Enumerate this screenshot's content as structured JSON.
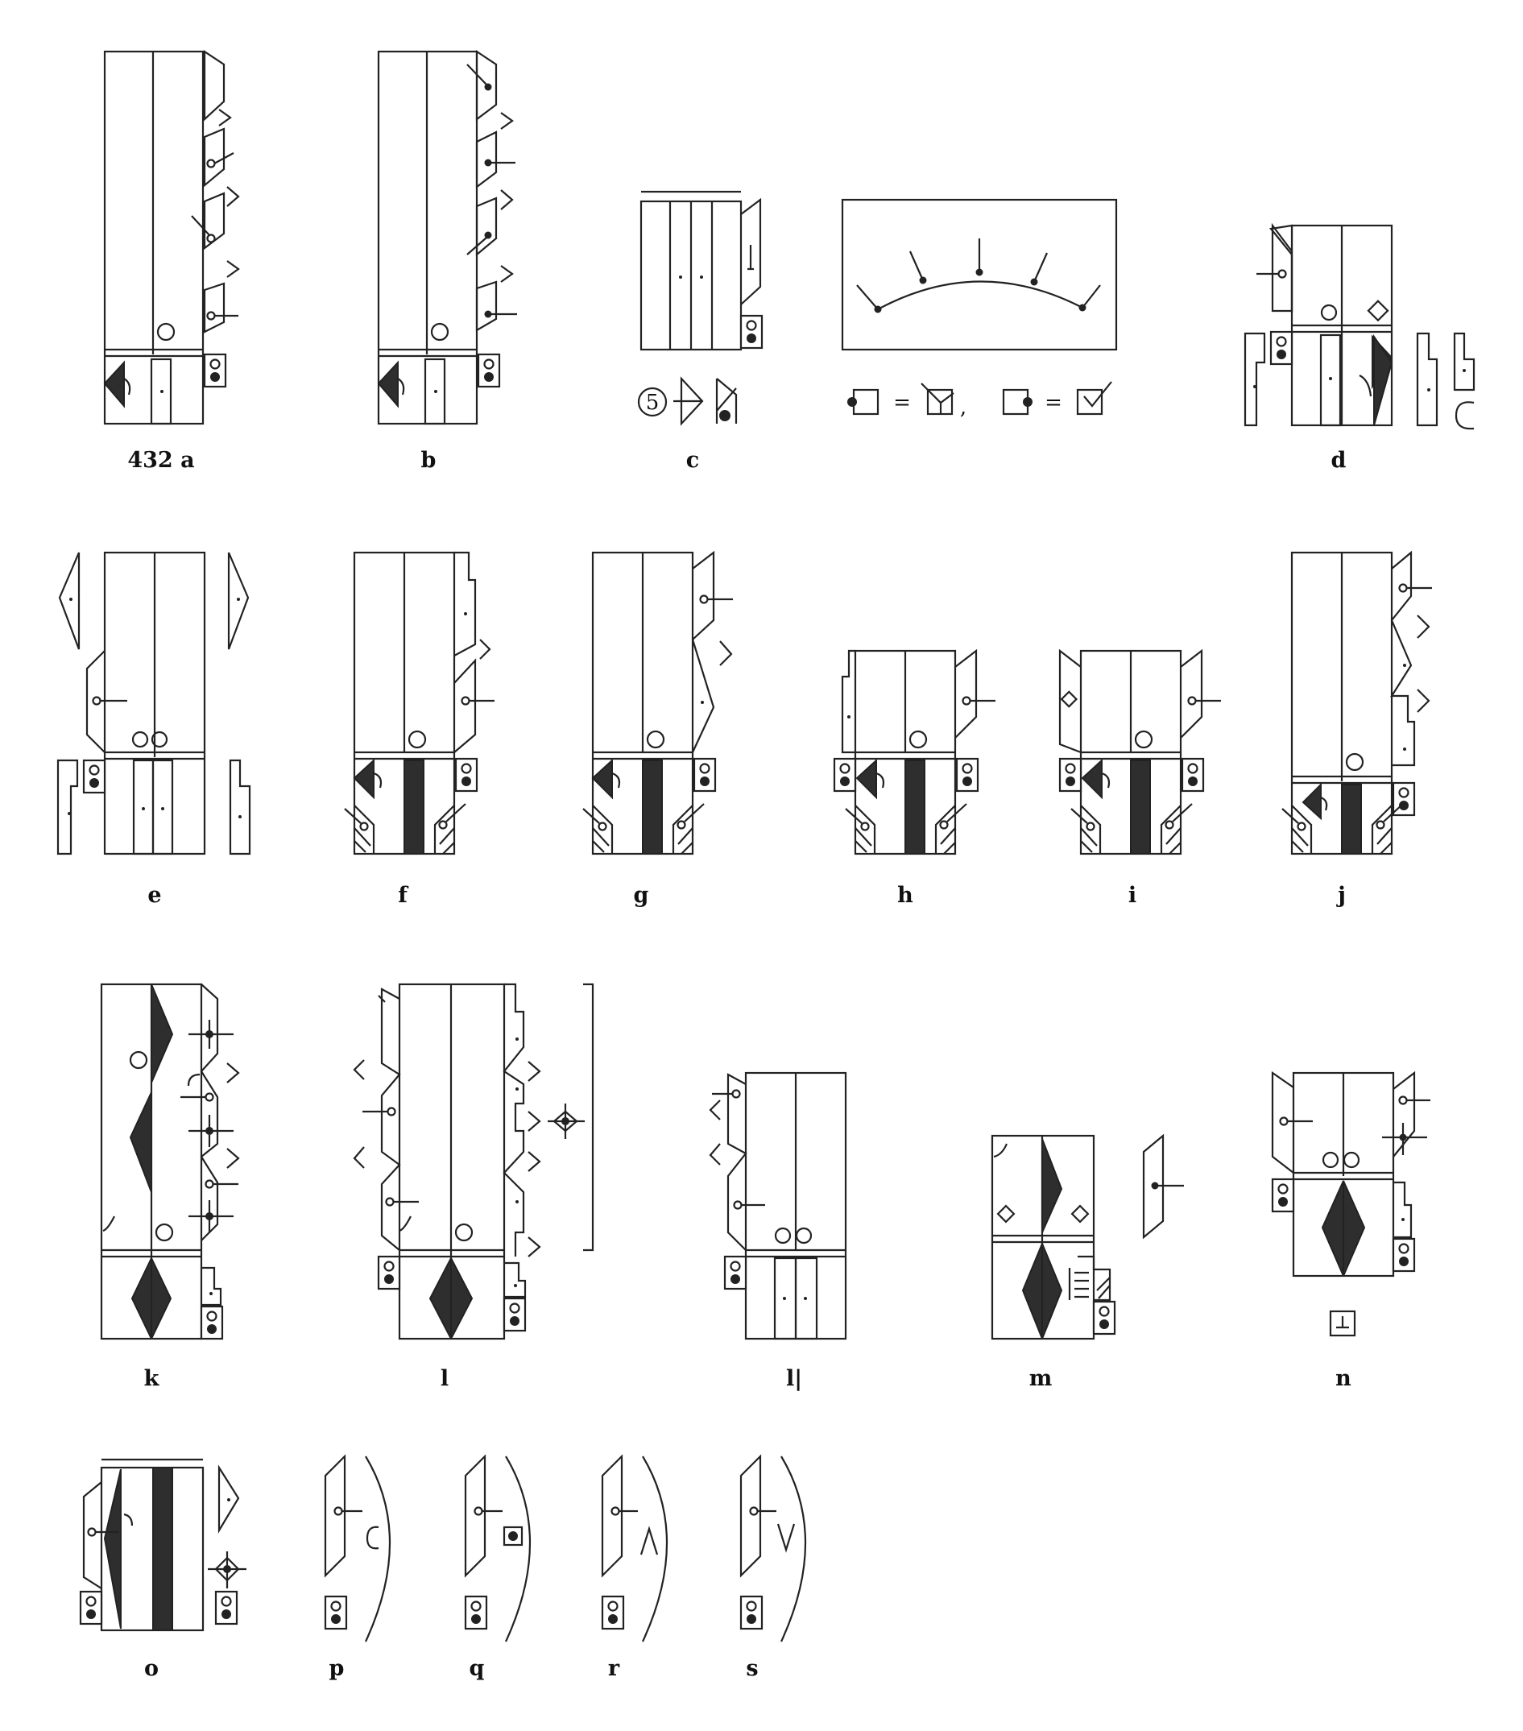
{
  "labels": {
    "a": "432 a",
    "b": "b",
    "c": "c",
    "d": "d",
    "e": "e",
    "f": "f",
    "g": "g",
    "h": "h",
    "i": "i",
    "j": "j",
    "k": "k",
    "l": "l",
    "l1": "l|",
    "m": "m",
    "n": "n",
    "o": "o",
    "p": "p",
    "q": "q",
    "r": "r",
    "s": "s"
  },
  "legend": {
    "circled_number": "5",
    "equals": "=",
    "comma": ","
  }
}
